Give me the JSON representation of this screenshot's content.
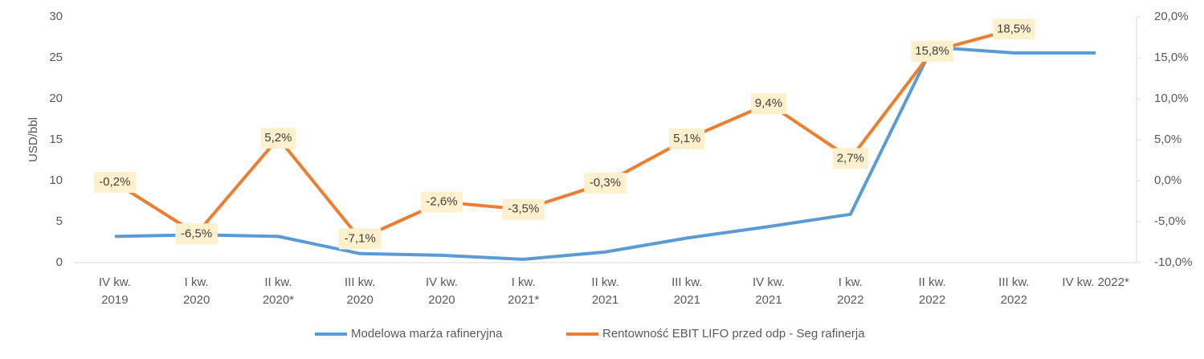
{
  "chart_data": {
    "type": "line",
    "y_label": "USD/bbl",
    "categories": [
      [
        "IV kw.",
        "2019"
      ],
      [
        "I kw.",
        "2020"
      ],
      [
        "II kw.",
        "2020*"
      ],
      [
        "III kw.",
        "2020"
      ],
      [
        "IV kw.",
        "2020"
      ],
      [
        "I kw.",
        "2021*"
      ],
      [
        "II kw.",
        "2021"
      ],
      [
        "III kw.",
        "2021"
      ],
      [
        "IV kw.",
        "2021"
      ],
      [
        "I kw.",
        "2022"
      ],
      [
        "II kw.",
        "2022"
      ],
      [
        "III kw.",
        "2022"
      ],
      [
        "IV kw. 2022*"
      ]
    ],
    "series": [
      {
        "name": "Modelowa marża rafineryjna",
        "color": "#5b9bd5",
        "axis": "y",
        "values": [
          3.2,
          3.4,
          3.2,
          1.1,
          0.9,
          0.4,
          1.3,
          3.0,
          4.4,
          5.9,
          26.3,
          25.6,
          25.6
        ]
      },
      {
        "name": "Rentowność EBIT LIFO przed odp - Seg rafinerja",
        "color": "#ed7d31",
        "axis": "y2",
        "values": [
          -0.2,
          -6.5,
          5.2,
          -7.1,
          -2.6,
          -3.5,
          -0.3,
          5.1,
          9.4,
          2.7,
          15.8,
          18.5,
          null
        ],
        "value_labels": [
          "-0,2%",
          "-6,5%",
          "5,2%",
          "-7,1%",
          "-2,6%",
          "-3,5%",
          "-0,3%",
          "5,1%",
          "9,4%",
          "2,7%",
          "15,8%",
          "18,5%",
          null
        ]
      }
    ],
    "ylim": [
      0,
      30
    ],
    "yticks": [
      0,
      5,
      10,
      15,
      20,
      25,
      30
    ],
    "y2lim": [
      -10,
      20
    ],
    "y2ticks": [
      {
        "value": -10,
        "label": "-10,0%"
      },
      {
        "value": -5,
        "label": "-5,0%"
      },
      {
        "value": 0,
        "label": "0,0%"
      },
      {
        "value": 5,
        "label": "5,0%"
      },
      {
        "value": 10,
        "label": "10,0%"
      },
      {
        "value": 15,
        "label": "15,0%"
      },
      {
        "value": 20,
        "label": "20,0%"
      }
    ],
    "grid": false,
    "legend": "bottom"
  }
}
